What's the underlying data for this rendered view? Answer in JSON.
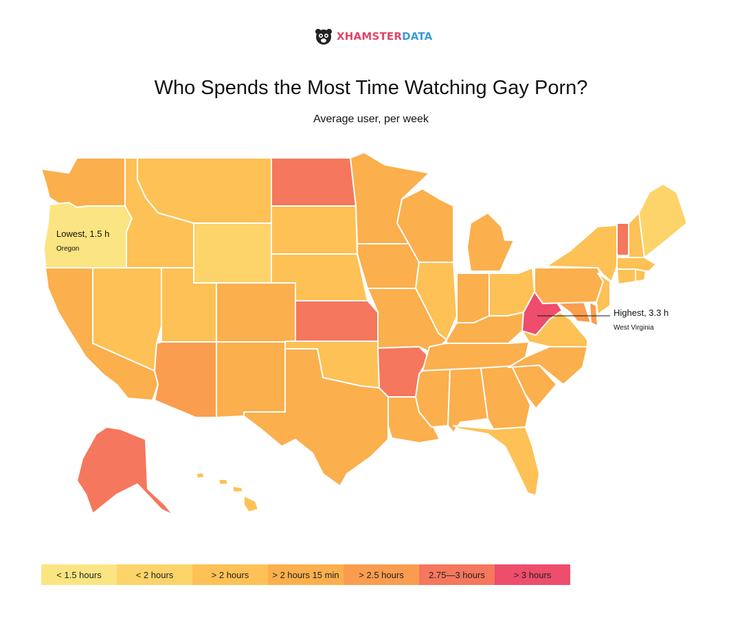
{
  "brand": {
    "name_part1": "XHAMSTER",
    "name_part2": "DATA",
    "icon": "hamster-logo-icon"
  },
  "title": "Who Spends the Most Time Watching Gay Porn?",
  "subtitle": "Average user, per week",
  "colors": {
    "c1": "#fbe582",
    "c2": "#fdd469",
    "c3": "#fdc155",
    "c4": "#fbaf4d",
    "c5": "#fa9d4f",
    "c6": "#f5775d",
    "c7": "#ee4d6c"
  },
  "legend": [
    {
      "label": "< 1.5 hours",
      "color": "#fbe582"
    },
    {
      "label": "< 2 hours",
      "color": "#fdd469"
    },
    {
      "label": "> 2 hours",
      "color": "#fdc155"
    },
    {
      "label": "> 2 hours 15 min",
      "color": "#fbaf4d"
    },
    {
      "label": "> 2.5 hours",
      "color": "#fa9d4f"
    },
    {
      "label": "2.75—3 hours",
      "color": "#f5775d"
    },
    {
      "label": "> 3 hours",
      "color": "#ee4d6c"
    }
  ],
  "callouts": {
    "lowest": {
      "title": "Lowest, 1.5 h",
      "state": "Oregon"
    },
    "highest": {
      "title": "Highest, 3.3 h",
      "state": "West Virginia"
    }
  },
  "states": {
    "WA": "c4",
    "OR": "c1",
    "CA": "c4",
    "ID": "c3",
    "NV": "c3",
    "MT": "c3",
    "WY": "c2",
    "UT": "c3",
    "AZ": "c5",
    "CO": "c4",
    "NM": "c4",
    "ND": "c6",
    "SD": "c3",
    "NE": "c3",
    "KS": "c6",
    "OK": "c3",
    "TX": "c4",
    "MN": "c4",
    "IA": "c4",
    "MO": "c4",
    "AR": "c6",
    "LA": "c4",
    "WI": "c4",
    "IL": "c3",
    "MI": "c4",
    "IN": "c4",
    "OH": "c3",
    "KY": "c4",
    "TN": "c4",
    "MS": "c4",
    "AL": "c4",
    "GA": "c4",
    "FL": "c3",
    "SC": "c4",
    "NC": "c4",
    "VA": "c3",
    "WV": "c7",
    "PA": "c4",
    "NY": "c3",
    "VT": "c6",
    "NH": "c3",
    "ME": "c2",
    "MA": "c3",
    "CT": "c3",
    "RI": "c3",
    "NJ": "c3",
    "DE": "c5",
    "MD": "c5",
    "AK": "c6",
    "HI": "c3"
  }
}
